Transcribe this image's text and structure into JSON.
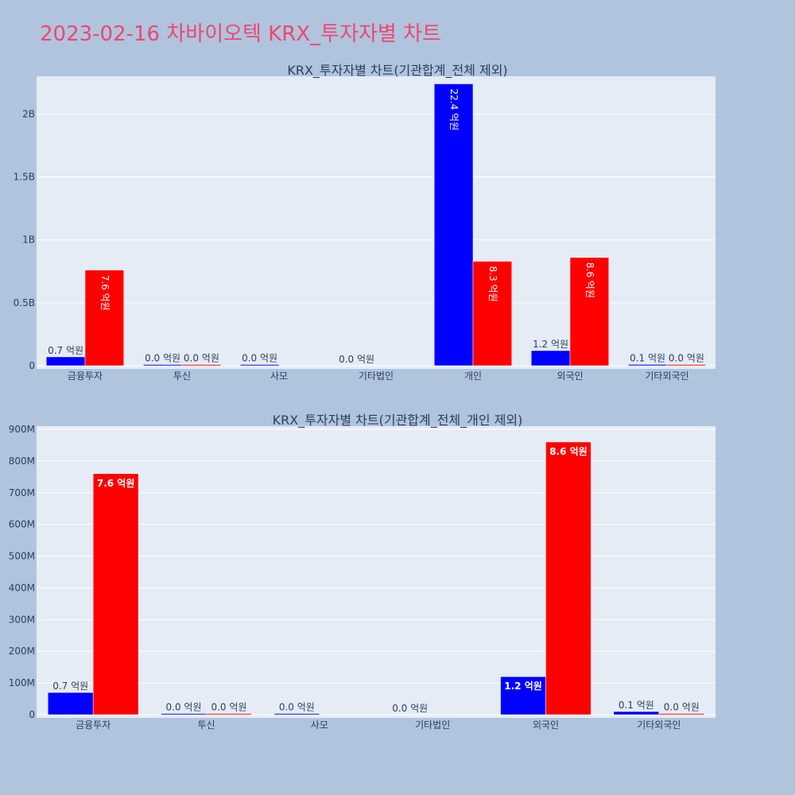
{
  "title": "2023-02-16 차바이오텍 KRX_투자자별 차트",
  "colors": {
    "background": "#b0c4de",
    "plot_bg": "#e5ecf6",
    "title": "#ef476f",
    "buy": "#0000ff",
    "sell": "#ff0000"
  },
  "chart_data": [
    {
      "type": "bar",
      "title": "KRX_투자자별 차트(기관합계_전체 제외)",
      "categories": [
        "금융투자",
        "투신",
        "사모",
        "기타법인",
        "개인",
        "외국인",
        "기타외국인"
      ],
      "ylim": [
        0,
        2300000000
      ],
      "yticks": [
        0,
        500000000,
        1000000000,
        1500000000,
        2000000000
      ],
      "ytick_labels": [
        "0",
        "0.5B",
        "1B",
        "1.5B",
        "2B"
      ],
      "grid": true,
      "series": [
        {
          "color": "#0000ff",
          "values": [
            70000000,
            1000000,
            3000000,
            0,
            2240000000,
            120000000,
            10000000
          ],
          "labels": [
            "0.7 억원",
            "0.0 억원",
            "0.0 억원",
            "0.0 억원",
            "22.4 억원",
            "1.2 억원",
            "0.1 억원"
          ]
        },
        {
          "color": "#ff0000",
          "values": [
            760000000,
            1000000,
            0,
            0,
            830000000,
            860000000,
            3000000
          ],
          "labels": [
            "7.6 억원",
            "0.0 억원",
            "",
            "",
            "8.3 억원",
            "8.6 억원",
            "0.0 억원"
          ]
        }
      ]
    },
    {
      "type": "bar",
      "title": "KRX_투자자별 차트(기관합계_전체_개인 제외)",
      "categories": [
        "금융투자",
        "투신",
        "사모",
        "기타법인",
        "외국인",
        "기타외국인"
      ],
      "ylim": [
        0,
        910000000
      ],
      "yticks": [
        0,
        100000000,
        200000000,
        300000000,
        400000000,
        500000000,
        600000000,
        700000000,
        800000000,
        900000000
      ],
      "ytick_labels": [
        "0",
        "100M",
        "200M",
        "300M",
        "400M",
        "500M",
        "600M",
        "700M",
        "800M",
        "900M"
      ],
      "grid": true,
      "series": [
        {
          "color": "#0000ff",
          "values": [
            70000000,
            1000000,
            3000000,
            0,
            120000000,
            10000000
          ],
          "labels": [
            "0.7 억원",
            "0.0 억원",
            "0.0 억원",
            "0.0 억원",
            "1.2 억원",
            "0.1 억원"
          ]
        },
        {
          "color": "#ff0000",
          "values": [
            760000000,
            1000000,
            0,
            0,
            860000000,
            3000000
          ],
          "labels": [
            "7.6 억원",
            "0.0 억원",
            "",
            "",
            "8.6 억원",
            "0.0 억원"
          ]
        }
      ]
    }
  ]
}
